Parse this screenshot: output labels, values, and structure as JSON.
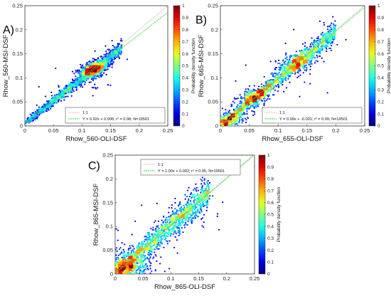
{
  "chart_data": [
    {
      "type": "scatter",
      "panel_label": "A)",
      "xlabel": "Rhow_560-OLI-DSF",
      "ylabel": "Rhow_560-MSI-DSF",
      "xlim": [
        0,
        0.25
      ],
      "ylim": [
        0,
        0.25
      ],
      "ticks": [
        "0",
        "0.05",
        "0.1",
        "0.15",
        "0.2",
        "0.25"
      ],
      "colorbar_label": "Probability density function",
      "colorbar_ticks": [
        "0",
        "0.1",
        "0.2",
        "0.3",
        "0.4",
        "0.5",
        "0.6",
        "0.7",
        "0.8",
        "0.9",
        "1"
      ],
      "legend": [
        "1:1",
        "Y = 0.92x + 0.006; r² = 0.98; N=19501"
      ],
      "fit": {
        "slope": 0.92,
        "intercept": 0.006,
        "r2": 0.98,
        "n": 19501
      },
      "cloud": {
        "x_max": 0.17,
        "spread": 0.006,
        "peaks": [
          [
            0.12,
            0.117
          ]
        ]
      },
      "grid": false,
      "legend_position": "bottom-right"
    },
    {
      "type": "scatter",
      "panel_label": "B)",
      "xlabel": "Rhow_655-OLI-DSF",
      "ylabel": "Rhow_665-MSI-DSF",
      "xlim": [
        0,
        0.25
      ],
      "ylim": [
        0,
        0.25
      ],
      "ticks": [
        "0",
        "0.05",
        "0.1",
        "0.15",
        "0.2",
        "0.25"
      ],
      "colorbar_label": "Probability density function",
      "colorbar_ticks": [
        "0",
        "0.1",
        "0.2",
        "0.3",
        "0.4",
        "0.5",
        "0.6",
        "0.7",
        "0.8",
        "0.9",
        "1"
      ],
      "legend": [
        "1:1",
        "Y = 0.99x + -0.001; r² = 0.99; N=19501"
      ],
      "fit": {
        "slope": 0.99,
        "intercept": -0.001,
        "r2": 0.99,
        "n": 19501
      },
      "cloud": {
        "x_max": 0.2,
        "spread": 0.008,
        "peaks": [
          [
            0.13,
            0.13
          ],
          [
            0.06,
            0.06
          ],
          [
            0.015,
            0.013
          ]
        ]
      },
      "grid": false,
      "legend_position": "bottom-right"
    },
    {
      "type": "scatter",
      "panel_label": "C)",
      "xlabel": "Rhow_865-OLI-DSF",
      "ylabel": "Rhow_865-MSI-DSF",
      "xlim": [
        0,
        0.25
      ],
      "ylim": [
        0,
        0.25
      ],
      "ticks": [
        "0",
        "0.05",
        "0.1",
        "0.15",
        "0.2",
        "0.25"
      ],
      "colorbar_label": "Probability density function",
      "colorbar_ticks": [
        "0",
        "0.1",
        "0.2",
        "0.3",
        "0.4",
        "0.5",
        "0.6",
        "0.7",
        "0.8",
        "0.9",
        "1"
      ],
      "legend": [
        "1:1",
        "Y = 1.00x + 0.002; r² = 0.95; N=19501"
      ],
      "fit": {
        "slope": 1.0,
        "intercept": 0.002,
        "r2": 0.95,
        "n": 19501
      },
      "cloud": {
        "x_max": 0.17,
        "spread": 0.014,
        "peaks": [
          [
            0.008,
            0.008
          ]
        ]
      },
      "grid": false,
      "legend_position": "top-left"
    }
  ],
  "colors": {
    "one_to_one_line": "#aaaaaa",
    "fit_line": "#22dd22",
    "colormap": "jet"
  }
}
